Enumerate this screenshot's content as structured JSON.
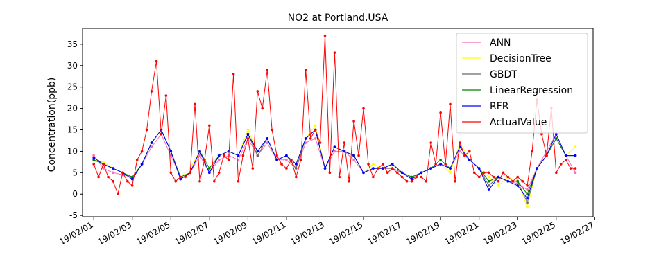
{
  "chart_data": {
    "type": "line",
    "title": "NO2 at Portland,USA",
    "xlabel": "",
    "ylabel": "Concentration(ppb)",
    "xlim": [
      "2019-01-31 10:00",
      "2019-02-26 22:00"
    ],
    "ylim": [
      -5.3,
      38.7
    ],
    "y_ticks": [
      -5,
      0,
      5,
      10,
      15,
      20,
      25,
      30,
      35
    ],
    "x_ticks": [
      "2019-02-01",
      "2019-02-03",
      "2019-02-05",
      "2019-02-07",
      "2019-02-09",
      "2019-02-11",
      "2019-02-13",
      "2019-02-15",
      "2019-02-17",
      "2019-02-19",
      "2019-02-21",
      "2019-02-23",
      "2019-02-25",
      "2019-02-27"
    ],
    "x_tick_labels": [
      "19/02/01",
      "19/02/03",
      "19/02/05",
      "19/02/07",
      "19/02/09",
      "19/02/11",
      "19/02/13",
      "19/02/15",
      "19/02/17",
      "19/02/19",
      "19/02/21",
      "19/02/23",
      "19/02/25",
      "19/02/27"
    ],
    "grid": false,
    "legend_position": "top-right",
    "series": [
      {
        "name": "ANN",
        "color": "#ff69b4",
        "x": [
          "2019-02-01 00:00",
          "2019-02-01 12:00",
          "2019-02-02 00:00",
          "2019-02-02 12:00",
          "2019-02-03 00:00",
          "2019-02-03 12:00",
          "2019-02-04 00:00",
          "2019-02-04 12:00",
          "2019-02-05 00:00",
          "2019-02-05 12:00",
          "2019-02-06 00:00",
          "2019-02-06 12:00",
          "2019-02-07 00:00",
          "2019-02-07 12:00",
          "2019-02-08 00:00",
          "2019-02-08 12:00",
          "2019-02-09 00:00",
          "2019-02-09 12:00",
          "2019-02-10 00:00",
          "2019-02-10 12:00",
          "2019-02-11 00:00",
          "2019-02-11 12:00",
          "2019-02-12 00:00",
          "2019-02-12 12:00",
          "2019-02-13 00:00",
          "2019-02-13 12:00",
          "2019-02-14 00:00",
          "2019-02-14 12:00",
          "2019-02-15 00:00",
          "2019-02-15 12:00",
          "2019-02-16 00:00",
          "2019-02-16 12:00",
          "2019-02-17 00:00",
          "2019-02-17 12:00",
          "2019-02-18 00:00",
          "2019-02-18 12:00",
          "2019-02-19 00:00",
          "2019-02-19 12:00",
          "2019-02-20 00:00",
          "2019-02-20 12:00",
          "2019-02-21 00:00",
          "2019-02-21 12:00",
          "2019-02-22 00:00",
          "2019-02-22 12:00",
          "2019-02-23 00:00",
          "2019-02-23 12:00",
          "2019-02-24 00:00",
          "2019-02-24 12:00",
          "2019-02-25 00:00",
          "2019-02-25 12:00",
          "2019-02-26 00:00"
        ],
        "values": [
          9,
          6,
          5,
          4.5,
          4,
          7,
          11,
          14,
          9,
          4,
          5,
          9,
          5,
          8,
          9,
          8,
          13,
          9,
          12,
          8,
          8,
          6,
          12,
          13,
          6,
          10,
          10,
          8,
          5,
          6,
          6,
          6,
          5,
          4,
          5,
          6,
          7,
          6,
          10,
          8,
          6,
          3,
          4,
          3,
          2.5,
          1,
          6,
          10,
          14,
          9,
          5
        ]
      },
      {
        "name": "DecisionTree",
        "color": "#ffff00",
        "x": [
          "2019-02-01 00:00",
          "2019-02-01 12:00",
          "2019-02-02 00:00",
          "2019-02-02 12:00",
          "2019-02-03 00:00",
          "2019-02-03 12:00",
          "2019-02-04 00:00",
          "2019-02-04 12:00",
          "2019-02-05 00:00",
          "2019-02-05 12:00",
          "2019-02-06 00:00",
          "2019-02-06 12:00",
          "2019-02-07 00:00",
          "2019-02-07 12:00",
          "2019-02-08 00:00",
          "2019-02-08 12:00",
          "2019-02-09 00:00",
          "2019-02-09 12:00",
          "2019-02-10 00:00",
          "2019-02-10 12:00",
          "2019-02-11 00:00",
          "2019-02-11 12:00",
          "2019-02-12 00:00",
          "2019-02-12 12:00",
          "2019-02-13 00:00",
          "2019-02-13 12:00",
          "2019-02-14 00:00",
          "2019-02-14 12:00",
          "2019-02-15 00:00",
          "2019-02-15 12:00",
          "2019-02-16 00:00",
          "2019-02-16 12:00",
          "2019-02-17 00:00",
          "2019-02-17 12:00",
          "2019-02-18 00:00",
          "2019-02-18 12:00",
          "2019-02-19 00:00",
          "2019-02-19 12:00",
          "2019-02-20 00:00",
          "2019-02-20 12:00",
          "2019-02-21 00:00",
          "2019-02-21 12:00",
          "2019-02-22 00:00",
          "2019-02-22 12:00",
          "2019-02-23 00:00",
          "2019-02-23 12:00",
          "2019-02-24 00:00",
          "2019-02-24 12:00",
          "2019-02-25 00:00",
          "2019-02-25 12:00",
          "2019-02-26 00:00"
        ],
        "values": [
          8,
          7.5,
          6,
          5,
          4,
          7,
          12,
          15,
          10,
          4,
          6,
          10,
          6,
          9,
          10,
          9,
          15,
          10,
          13,
          8,
          9,
          7,
          13,
          16,
          6,
          11,
          10,
          9,
          5,
          7,
          6,
          7,
          5,
          4,
          5,
          6,
          7,
          5,
          12,
          8,
          6,
          4,
          2,
          4,
          3,
          -3,
          6,
          9,
          13,
          9,
          11
        ]
      },
      {
        "name": "GBDT",
        "color": "#696969",
        "x": [
          "2019-02-01 00:00",
          "2019-02-01 12:00",
          "2019-02-02 00:00",
          "2019-02-02 12:00",
          "2019-02-03 00:00",
          "2019-02-03 12:00",
          "2019-02-04 00:00",
          "2019-02-04 12:00",
          "2019-02-05 00:00",
          "2019-02-05 12:00",
          "2019-02-06 00:00",
          "2019-02-06 12:00",
          "2019-02-07 00:00",
          "2019-02-07 12:00",
          "2019-02-08 00:00",
          "2019-02-08 12:00",
          "2019-02-09 00:00",
          "2019-02-09 12:00",
          "2019-02-10 00:00",
          "2019-02-10 12:00",
          "2019-02-11 00:00",
          "2019-02-11 12:00",
          "2019-02-12 00:00",
          "2019-02-12 12:00",
          "2019-02-13 00:00",
          "2019-02-13 12:00",
          "2019-02-14 00:00",
          "2019-02-14 12:00",
          "2019-02-15 00:00",
          "2019-02-15 12:00",
          "2019-02-16 00:00",
          "2019-02-16 12:00",
          "2019-02-17 00:00",
          "2019-02-17 12:00",
          "2019-02-18 00:00",
          "2019-02-18 12:00",
          "2019-02-19 00:00",
          "2019-02-19 12:00",
          "2019-02-20 00:00",
          "2019-02-20 12:00",
          "2019-02-21 00:00",
          "2019-02-21 12:00",
          "2019-02-22 00:00",
          "2019-02-22 12:00",
          "2019-02-23 00:00",
          "2019-02-23 12:00",
          "2019-02-24 00:00",
          "2019-02-24 12:00",
          "2019-02-25 00:00",
          "2019-02-25 12:00",
          "2019-02-26 00:00"
        ],
        "values": [
          8,
          7,
          6,
          5,
          3.5,
          7,
          12,
          15,
          10,
          3.5,
          5,
          10,
          5,
          9,
          10,
          9,
          14,
          9,
          13,
          8,
          9,
          6,
          13,
          15,
          6,
          11,
          10,
          9,
          5,
          6,
          6,
          6,
          5,
          4,
          5,
          6,
          7,
          6,
          11,
          8,
          6,
          2,
          4,
          3,
          3,
          -2,
          6,
          9,
          13,
          9,
          9
        ]
      },
      {
        "name": "LinearRegression",
        "color": "#008000",
        "x": [
          "2019-02-01 00:00",
          "2019-02-01 12:00",
          "2019-02-02 00:00",
          "2019-02-02 12:00",
          "2019-02-03 00:00",
          "2019-02-03 12:00",
          "2019-02-04 00:00",
          "2019-02-04 12:00",
          "2019-02-05 00:00",
          "2019-02-05 12:00",
          "2019-02-06 00:00",
          "2019-02-06 12:00",
          "2019-02-07 00:00",
          "2019-02-07 12:00",
          "2019-02-08 00:00",
          "2019-02-08 12:00",
          "2019-02-09 00:00",
          "2019-02-09 12:00",
          "2019-02-10 00:00",
          "2019-02-10 12:00",
          "2019-02-11 00:00",
          "2019-02-11 12:00",
          "2019-02-12 00:00",
          "2019-02-12 12:00",
          "2019-02-13 00:00",
          "2019-02-13 12:00",
          "2019-02-14 00:00",
          "2019-02-14 12:00",
          "2019-02-15 00:00",
          "2019-02-15 12:00",
          "2019-02-16 00:00",
          "2019-02-16 12:00",
          "2019-02-17 00:00",
          "2019-02-17 12:00",
          "2019-02-18 00:00",
          "2019-02-18 12:00",
          "2019-02-19 00:00",
          "2019-02-19 12:00",
          "2019-02-20 00:00",
          "2019-02-20 12:00",
          "2019-02-21 00:00",
          "2019-02-21 12:00",
          "2019-02-22 00:00",
          "2019-02-22 12:00",
          "2019-02-23 00:00",
          "2019-02-23 12:00",
          "2019-02-24 00:00",
          "2019-02-24 12:00",
          "2019-02-25 00:00",
          "2019-02-25 12:00",
          "2019-02-26 00:00"
        ],
        "values": [
          8,
          7,
          6,
          5,
          4,
          7,
          12,
          15,
          10,
          4,
          5,
          10,
          6,
          9,
          10,
          9,
          14,
          10,
          13,
          8,
          9,
          7,
          13,
          15,
          6,
          11,
          10,
          9,
          5,
          6,
          6,
          7,
          5,
          4,
          5,
          6,
          8,
          6,
          11,
          8,
          6,
          3,
          4,
          3,
          3,
          0,
          6,
          9,
          13,
          9,
          9
        ]
      },
      {
        "name": "RFR",
        "color": "#0000ff",
        "x": [
          "2019-02-01 00:00",
          "2019-02-01 12:00",
          "2019-02-02 00:00",
          "2019-02-02 12:00",
          "2019-02-03 00:00",
          "2019-02-03 12:00",
          "2019-02-04 00:00",
          "2019-02-04 12:00",
          "2019-02-05 00:00",
          "2019-02-05 12:00",
          "2019-02-06 00:00",
          "2019-02-06 12:00",
          "2019-02-07 00:00",
          "2019-02-07 12:00",
          "2019-02-08 00:00",
          "2019-02-08 12:00",
          "2019-02-09 00:00",
          "2019-02-09 12:00",
          "2019-02-10 00:00",
          "2019-02-10 12:00",
          "2019-02-11 00:00",
          "2019-02-11 12:00",
          "2019-02-12 00:00",
          "2019-02-12 12:00",
          "2019-02-13 00:00",
          "2019-02-13 12:00",
          "2019-02-14 00:00",
          "2019-02-14 12:00",
          "2019-02-15 00:00",
          "2019-02-15 12:00",
          "2019-02-16 00:00",
          "2019-02-16 12:00",
          "2019-02-17 00:00",
          "2019-02-17 12:00",
          "2019-02-18 00:00",
          "2019-02-18 12:00",
          "2019-02-19 00:00",
          "2019-02-19 12:00",
          "2019-02-20 00:00",
          "2019-02-20 12:00",
          "2019-02-21 00:00",
          "2019-02-21 12:00",
          "2019-02-22 00:00",
          "2019-02-22 12:00",
          "2019-02-23 00:00",
          "2019-02-23 12:00",
          "2019-02-24 00:00",
          "2019-02-24 12:00",
          "2019-02-25 00:00",
          "2019-02-25 12:00",
          "2019-02-26 00:00"
        ],
        "values": [
          8.5,
          7,
          6,
          5,
          3.5,
          7,
          12,
          15,
          10,
          3.5,
          5,
          10,
          5,
          9,
          10,
          9,
          14,
          10,
          13,
          8,
          9,
          7,
          13,
          15,
          6,
          11,
          10,
          9,
          5,
          6,
          6,
          7,
          5,
          3.5,
          5,
          6,
          7,
          6,
          11,
          8,
          6,
          1,
          4,
          3,
          2,
          -1,
          6,
          9,
          14,
          9,
          9
        ]
      },
      {
        "name": "ActualValue",
        "color": "#ff0000",
        "x": [
          "2019-02-01 00:00",
          "2019-02-01 06:00",
          "2019-02-01 12:00",
          "2019-02-01 18:00",
          "2019-02-02 00:00",
          "2019-02-02 06:00",
          "2019-02-02 12:00",
          "2019-02-02 18:00",
          "2019-02-03 00:00",
          "2019-02-03 06:00",
          "2019-02-03 12:00",
          "2019-02-03 18:00",
          "2019-02-04 00:00",
          "2019-02-04 06:00",
          "2019-02-04 12:00",
          "2019-02-04 18:00",
          "2019-02-05 00:00",
          "2019-02-05 06:00",
          "2019-02-05 12:00",
          "2019-02-05 18:00",
          "2019-02-06 00:00",
          "2019-02-06 06:00",
          "2019-02-06 12:00",
          "2019-02-06 18:00",
          "2019-02-07 00:00",
          "2019-02-07 06:00",
          "2019-02-07 12:00",
          "2019-02-07 18:00",
          "2019-02-08 00:00",
          "2019-02-08 06:00",
          "2019-02-08 12:00",
          "2019-02-08 18:00",
          "2019-02-09 00:00",
          "2019-02-09 06:00",
          "2019-02-09 12:00",
          "2019-02-09 18:00",
          "2019-02-10 00:00",
          "2019-02-10 06:00",
          "2019-02-10 12:00",
          "2019-02-10 18:00",
          "2019-02-11 00:00",
          "2019-02-11 06:00",
          "2019-02-11 12:00",
          "2019-02-11 18:00",
          "2019-02-12 00:00",
          "2019-02-12 06:00",
          "2019-02-12 12:00",
          "2019-02-12 18:00",
          "2019-02-13 00:00",
          "2019-02-13 06:00",
          "2019-02-13 12:00",
          "2019-02-13 18:00",
          "2019-02-14 00:00",
          "2019-02-14 06:00",
          "2019-02-14 12:00",
          "2019-02-14 18:00",
          "2019-02-15 00:00",
          "2019-02-15 06:00",
          "2019-02-15 12:00",
          "2019-02-15 18:00",
          "2019-02-16 00:00",
          "2019-02-16 06:00",
          "2019-02-16 12:00",
          "2019-02-16 18:00",
          "2019-02-17 00:00",
          "2019-02-17 06:00",
          "2019-02-17 12:00",
          "2019-02-17 18:00",
          "2019-02-18 00:00",
          "2019-02-18 06:00",
          "2019-02-18 12:00",
          "2019-02-18 18:00",
          "2019-02-19 00:00",
          "2019-02-19 06:00",
          "2019-02-19 12:00",
          "2019-02-19 18:00",
          "2019-02-20 00:00",
          "2019-02-20 06:00",
          "2019-02-20 12:00",
          "2019-02-20 18:00",
          "2019-02-21 00:00",
          "2019-02-21 06:00",
          "2019-02-21 12:00",
          "2019-02-21 18:00",
          "2019-02-22 00:00",
          "2019-02-22 06:00",
          "2019-02-22 12:00",
          "2019-02-22 18:00",
          "2019-02-23 00:00",
          "2019-02-23 06:00",
          "2019-02-23 12:00",
          "2019-02-23 18:00",
          "2019-02-24 00:00",
          "2019-02-24 06:00",
          "2019-02-24 12:00",
          "2019-02-24 18:00",
          "2019-02-25 00:00",
          "2019-02-25 06:00",
          "2019-02-25 12:00",
          "2019-02-25 18:00",
          "2019-02-26 00:00"
        ],
        "values": [
          7,
          4,
          7,
          4,
          3,
          0,
          5,
          3,
          2,
          8,
          10,
          15,
          24,
          31,
          14,
          23,
          5,
          3,
          4,
          4,
          5,
          21,
          3,
          8,
          16,
          3,
          5,
          9,
          8,
          28,
          3,
          9,
          13,
          6,
          24,
          20,
          29,
          15,
          9,
          7,
          6,
          8,
          4,
          8,
          29,
          13,
          15,
          12,
          37,
          5,
          33,
          4,
          12,
          3,
          17,
          9,
          20,
          7,
          4,
          6,
          7,
          5,
          6,
          5,
          4,
          3,
          3,
          4,
          4,
          3,
          12,
          7,
          19,
          7,
          21,
          3,
          12,
          9,
          10,
          5,
          4,
          5,
          5,
          4,
          3,
          5,
          4,
          3,
          4,
          3,
          2,
          10,
          22,
          14,
          9,
          20,
          5,
          7,
          8,
          6,
          6
        ]
      }
    ]
  }
}
